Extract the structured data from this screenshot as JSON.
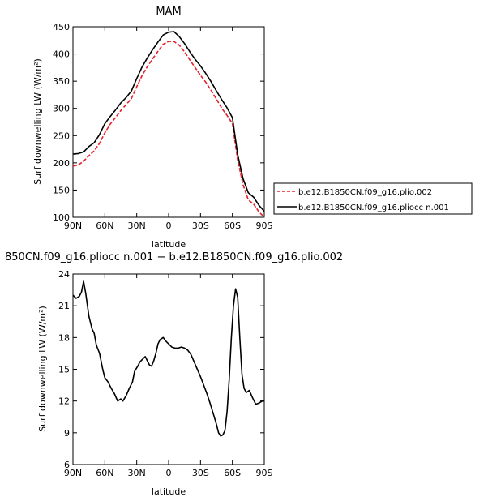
{
  "chart_data": [
    {
      "type": "line",
      "title": "MAM",
      "xlabel": "latitude",
      "ylabel": "Surf downwelling LW (W/m²)",
      "x_ticks": [
        "90N",
        "60N",
        "30N",
        "0",
        "30S",
        "60S",
        "90S"
      ],
      "y_ticks": [
        "100",
        "150",
        "200",
        "250",
        "300",
        "350",
        "400",
        "450"
      ],
      "xlim": [
        90,
        -90
      ],
      "ylim": [
        100,
        450
      ],
      "grid": false,
      "legend_position": "right",
      "series": [
        {
          "name": "b.e12.B1850CN.f09_g16.plio.002",
          "color": "#e8202a",
          "dash": "dashed",
          "points": [
            [
              90,
              194
            ],
            [
              85,
              196
            ],
            [
              80,
              203
            ],
            [
              75,
              213
            ],
            [
              70,
              222
            ],
            [
              65,
              236
            ],
            [
              60,
              255
            ],
            [
              55,
              271
            ],
            [
              50,
              283
            ],
            [
              45,
              296
            ],
            [
              40,
              307
            ],
            [
              35,
              318
            ],
            [
              30,
              340
            ],
            [
              25,
              360
            ],
            [
              20,
              377
            ],
            [
              15,
              391
            ],
            [
              10,
              405
            ],
            [
              5,
              418
            ],
            [
              0,
              423
            ],
            [
              -5,
              423
            ],
            [
              -10,
              416
            ],
            [
              -15,
              404
            ],
            [
              -20,
              389
            ],
            [
              -25,
              375
            ],
            [
              -30,
              361
            ],
            [
              -35,
              348
            ],
            [
              -40,
              333
            ],
            [
              -45,
              317
            ],
            [
              -50,
              300
            ],
            [
              -55,
              287
            ],
            [
              -60,
              272
            ],
            [
              -65,
              205
            ],
            [
              -70,
              160
            ],
            [
              -75,
              132
            ],
            [
              -80,
              124
            ],
            [
              -85,
              110
            ],
            [
              -90,
              100
            ]
          ]
        },
        {
          "name": "b.e12.B1850CN.f09_g16.pliocc n.001",
          "color": "#000000",
          "dash": "solid",
          "points": [
            [
              90,
              216
            ],
            [
              85,
              217
            ],
            [
              80,
              220
            ],
            [
              75,
              230
            ],
            [
              70,
              237
            ],
            [
              65,
              252
            ],
            [
              60,
              272
            ],
            [
              55,
              285
            ],
            [
              50,
              297
            ],
            [
              45,
              310
            ],
            [
              40,
              320
            ],
            [
              35,
              332
            ],
            [
              30,
              355
            ],
            [
              25,
              376
            ],
            [
              20,
              393
            ],
            [
              15,
              408
            ],
            [
              10,
              422
            ],
            [
              5,
              435
            ],
            [
              0,
              440
            ],
            [
              -5,
              441
            ],
            [
              -10,
              432
            ],
            [
              -15,
              419
            ],
            [
              -20,
              404
            ],
            [
              -25,
              390
            ],
            [
              -30,
              378
            ],
            [
              -35,
              364
            ],
            [
              -40,
              349
            ],
            [
              -45,
              332
            ],
            [
              -50,
              316
            ],
            [
              -55,
              301
            ],
            [
              -60,
              283
            ],
            [
              -65,
              215
            ],
            [
              -70,
              171
            ],
            [
              -75,
              145
            ],
            [
              -80,
              137
            ],
            [
              -85,
              122
            ],
            [
              -90,
              111
            ]
          ]
        }
      ]
    },
    {
      "type": "line",
      "title": "850CN.f09_g16.pliocc n.001 − b.e12.B1850CN.f09_g16.plio.002",
      "xlabel": "latitude",
      "ylabel": "Surf downwelling LW (W/m²)",
      "x_ticks": [
        "90N",
        "60N",
        "30N",
        "0",
        "30S",
        "60S",
        "90S"
      ],
      "y_ticks": [
        "6",
        "9",
        "12",
        "15",
        "18",
        "21",
        "24"
      ],
      "xlim": [
        90,
        -90
      ],
      "ylim": [
        6,
        24
      ],
      "grid": false,
      "series": [
        {
          "name": "",
          "color": "#000000",
          "dash": "solid",
          "points": [
            [
              90,
              22.0
            ],
            [
              87,
              21.7
            ],
            [
              84,
              21.9
            ],
            [
              82,
              22.3
            ],
            [
              80,
              23.3
            ],
            [
              78,
              22.2
            ],
            [
              75,
              20.0
            ],
            [
              72,
              18.8
            ],
            [
              70,
              18.4
            ],
            [
              68,
              17.3
            ],
            [
              65,
              16.5
            ],
            [
              62,
              15.0
            ],
            [
              60,
              14.2
            ],
            [
              57,
              13.8
            ],
            [
              54,
              13.2
            ],
            [
              51,
              12.7
            ],
            [
              48,
              12.0
            ],
            [
              45,
              12.2
            ],
            [
              43,
              12.0
            ],
            [
              40,
              12.5
            ],
            [
              37,
              13.2
            ],
            [
              34,
              13.8
            ],
            [
              32,
              14.8
            ],
            [
              29,
              15.3
            ],
            [
              27,
              15.7
            ],
            [
              24,
              16.0
            ],
            [
              22,
              16.2
            ],
            [
              20,
              15.8
            ],
            [
              18,
              15.4
            ],
            [
              16,
              15.3
            ],
            [
              14,
              15.8
            ],
            [
              12,
              16.5
            ],
            [
              10,
              17.4
            ],
            [
              8,
              17.8
            ],
            [
              5,
              18.0
            ],
            [
              3,
              17.7
            ],
            [
              0,
              17.4
            ],
            [
              -3,
              17.1
            ],
            [
              -6,
              17.0
            ],
            [
              -9,
              17.0
            ],
            [
              -12,
              17.1
            ],
            [
              -15,
              17.0
            ],
            [
              -18,
              16.8
            ],
            [
              -21,
              16.4
            ],
            [
              -24,
              15.7
            ],
            [
              -27,
              15.0
            ],
            [
              -30,
              14.3
            ],
            [
              -33,
              13.5
            ],
            [
              -36,
              12.7
            ],
            [
              -39,
              11.8
            ],
            [
              -42,
              10.8
            ],
            [
              -45,
              9.8
            ],
            [
              -47,
              9.0
            ],
            [
              -49,
              8.7
            ],
            [
              -51,
              8.8
            ],
            [
              -53,
              9.2
            ],
            [
              -55,
              11.0
            ],
            [
              -57,
              14.0
            ],
            [
              -59,
              18.0
            ],
            [
              -61,
              21.0
            ],
            [
              -63,
              22.6
            ],
            [
              -65,
              21.8
            ],
            [
              -67,
              18.0
            ],
            [
              -69,
              14.5
            ],
            [
              -71,
              13.2
            ],
            [
              -73,
              12.8
            ],
            [
              -76,
              13.0
            ],
            [
              -79,
              12.3
            ],
            [
              -82,
              11.7
            ],
            [
              -85,
              11.8
            ],
            [
              -88,
              12.0
            ],
            [
              -90,
              12.0
            ]
          ]
        }
      ]
    }
  ]
}
